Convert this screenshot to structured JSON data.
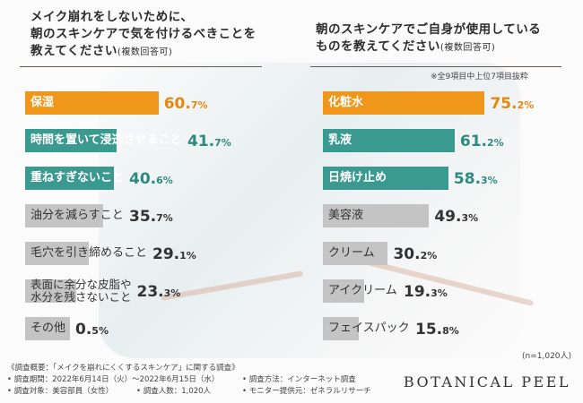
{
  "colors": {
    "orange": "#f0961a",
    "teal": "#3a9a90",
    "gray": "#c4c4c4",
    "text_dark": "#333333",
    "value_orange": "#e8870f",
    "value_teal": "#2e8a80"
  },
  "footer": {
    "line1": "《調査概要：「メイクを崩れにくくするスキンケア」に関する調査》",
    "line2a": "• 調査期間：2022年6月14日（火）〜2022年6月15日（水）",
    "line2b": "• 調査方法：インターネット調査",
    "line3a": "• 調査対象：美容部員（女性）",
    "line3b": "• 調査人数：1,020人",
    "line3c": "• モニター提供元：ゼネラルリサーチ",
    "brand": "BOTANICAL PEEL"
  },
  "chart_data": [
    {
      "type": "bar",
      "orientation": "horizontal",
      "title_line1": "メイク崩れをしないために、",
      "title_line2": "朝のスキンケアで気を付けるべきことを",
      "title_line3": "教えてください",
      "subtitle": "(複数回答可)",
      "unit": "%",
      "categories": [
        "保湿",
        "時間を置いて浸透させること",
        "重ねすぎないこと",
        "油分を減らすこと",
        "毛穴を引き締めること",
        "表面に余分な皮脂や\n水分を残さないこと",
        "その他"
      ],
      "values": [
        60.7,
        41.7,
        40.6,
        35.7,
        29.1,
        23.3,
        0.5
      ],
      "value_labels": [
        {
          "int": "60.",
          "dec": "7%"
        },
        {
          "int": "41.",
          "dec": "7%"
        },
        {
          "int": "40.",
          "dec": "6%"
        },
        {
          "int": "35.",
          "dec": "7%"
        },
        {
          "int": "29.",
          "dec": "1%"
        },
        {
          "int": "23.",
          "dec": "3%"
        },
        {
          "int": "0.",
          "dec": "5%"
        }
      ],
      "highlight": [
        "orange",
        "teal",
        "teal",
        "gray",
        "gray",
        "gray",
        "gray"
      ]
    },
    {
      "type": "bar",
      "orientation": "horizontal",
      "title_line1": "朝のスキンケアでご自身が使用している",
      "title_line2": "ものを教えてください",
      "subtitle": "(複数回答可)",
      "note": "※全9項目中上位7項目抜粋",
      "unit": "%",
      "categories": [
        "化粧水",
        "乳液",
        "日焼け止め",
        "美容液",
        "クリーム",
        "アイクリーム",
        "フェイスパック"
      ],
      "values": [
        75.2,
        61.2,
        58.3,
        49.3,
        30.2,
        19.3,
        15.8
      ],
      "value_labels": [
        {
          "int": "75.",
          "dec": "2%"
        },
        {
          "int": "61.",
          "dec": "2%"
        },
        {
          "int": "58.",
          "dec": "3%"
        },
        {
          "int": "49.",
          "dec": "3%"
        },
        {
          "int": "30.",
          "dec": "2%"
        },
        {
          "int": "19.",
          "dec": "3%"
        },
        {
          "int": "15.",
          "dec": "8%"
        }
      ],
      "highlight": [
        "orange",
        "teal",
        "teal",
        "gray",
        "gray",
        "gray",
        "gray"
      ],
      "sample_note": "(n=1,020人)"
    }
  ]
}
